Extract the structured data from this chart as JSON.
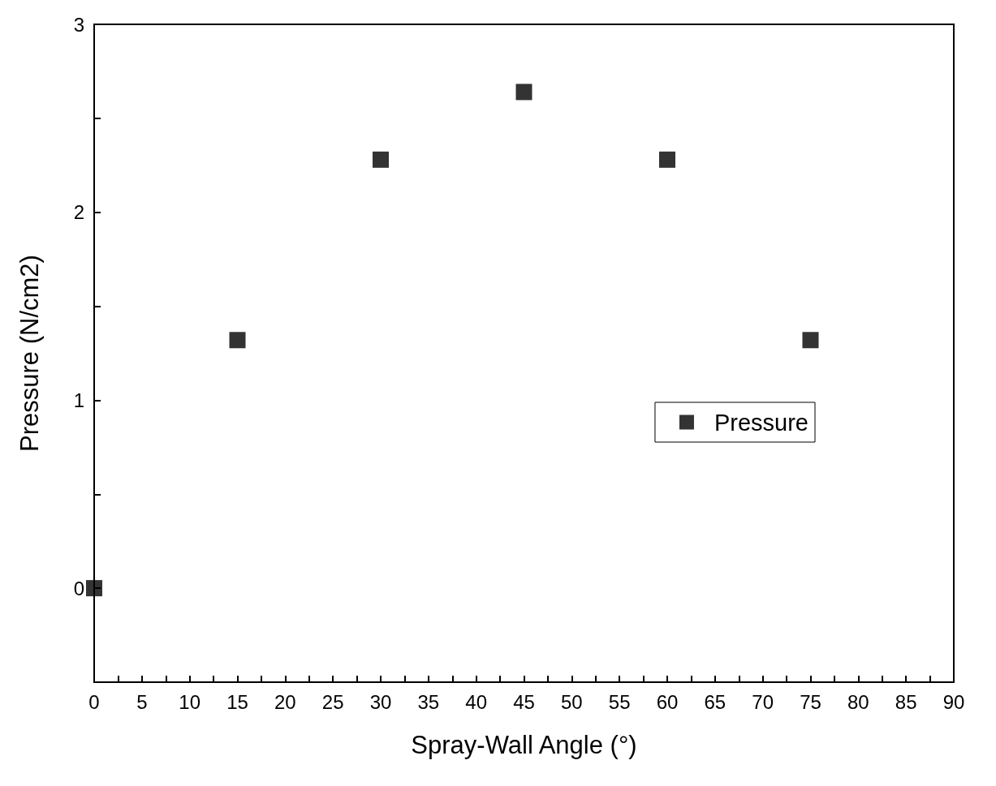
{
  "chart_data": {
    "type": "scatter",
    "xlabel": "Spray-Wall Angle (°)",
    "ylabel": "Pressure (N/cm2)",
    "x": [
      0,
      15,
      30,
      45,
      60,
      75
    ],
    "series": [
      {
        "name": "Pressure",
        "color": "#000000",
        "values": [
          0,
          1.32,
          2.28,
          2.64,
          2.28,
          1.32
        ]
      }
    ],
    "xlim": [
      0,
      90
    ],
    "xticks": [
      0,
      {
        "value": 2.5,
        "label": null
      },
      5,
      {
        "value": 7.5,
        "label": null
      },
      10,
      {
        "value": 12.5,
        "label": null
      },
      15,
      {
        "value": 17.5,
        "label": null
      },
      20,
      {
        "value": 22.5,
        "label": null
      },
      25,
      {
        "value": 27.5,
        "label": null
      },
      30,
      {
        "value": 32.5,
        "label": null
      },
      35,
      {
        "value": 37.5,
        "label": null
      },
      40,
      {
        "value": 42.5,
        "label": null
      },
      45,
      {
        "value": 47.5,
        "label": null
      },
      50,
      {
        "value": 52.5,
        "label": null
      },
      55,
      {
        "value": 57.5,
        "label": null
      },
      60,
      {
        "value": 62.5,
        "label": null
      },
      65,
      {
        "value": 67.5,
        "label": null
      },
      70,
      {
        "value": 72.5,
        "label": null
      },
      75,
      {
        "value": 77.5,
        "label": null
      },
      80,
      {
        "value": 82.5,
        "label": null
      },
      85,
      {
        "value": 87.5,
        "label": null
      },
      90
    ],
    "ylim": [
      -0.5,
      3
    ],
    "yticks": [
      0,
      {
        "value": 0.5,
        "label": null
      },
      1,
      {
        "value": 1.5,
        "label": null
      },
      2,
      {
        "value": 2.5,
        "label": null
      },
      3
    ],
    "marker": "square",
    "legend": "right",
    "grid": false
  }
}
